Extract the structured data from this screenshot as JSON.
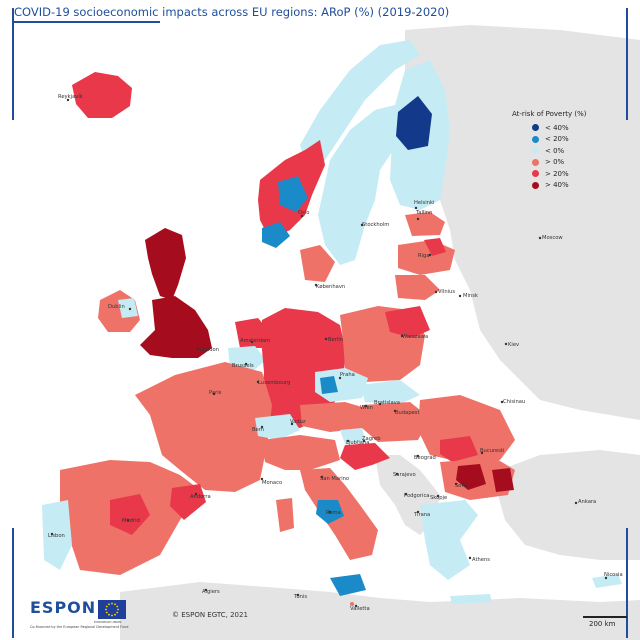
{
  "title": "COVID-19 socioeconomic impacts across EU regions: ARoP (%) (2019-2020)",
  "legend": {
    "title": "At-risk of Poverty (%)",
    "items": [
      {
        "label": "< 40%",
        "color": "#12398a"
      },
      {
        "label": "< 20%",
        "color": "#1b8ac8"
      },
      {
        "label": "< 0%",
        "color": "#c5ebf4"
      },
      {
        "label": "> 0%",
        "color": "#ee7268"
      },
      {
        "label": "> 20%",
        "color": "#e8384a"
      },
      {
        "label": "> 40%",
        "color": "#a50d1e"
      }
    ]
  },
  "colors": {
    "sea": "#ffffff",
    "non_eu_land": "#e4e4e4",
    "frame": "#1f4e9b"
  },
  "cities": {
    "reykjavik": "Reykjavík",
    "oslo": "Oslo",
    "stockholm": "Stockholm",
    "helsinki": "Helsinki",
    "tallinn": "Tallinn",
    "riga": "Riga",
    "moscow": "Moscow",
    "vilnius": "Vilnius",
    "minsk": "Minsk",
    "kobenhavn": "København",
    "dublin": "Dublin",
    "london": "London",
    "amsterdam": "Amsterdam",
    "berlin": "Berlin",
    "warszawa": "Warszawa",
    "kiev": "Kiev",
    "brussels": "Brussels",
    "luxembourg": "Luxembourg",
    "praha": "Praha",
    "paris": "Paris",
    "wien": "Wien",
    "bratislava": "Bratislava",
    "budapest": "Budapest",
    "chisinau": "Chisinau",
    "vaduz": "Vaduz",
    "bern": "Bern",
    "ljubljana": "Ljubljana",
    "zagreb": "Zagreb",
    "bucuresti": "Bucuresti",
    "beograd": "Beograd",
    "monaco": "Monaco",
    "san_marino": "San Marino",
    "sarajevo": "Sarajevo",
    "sofia": "Sofia",
    "podgorica": "Podgorica",
    "andorra": "Andorra",
    "skopje": "Skopje",
    "madrid": "Madrid",
    "roma": "Roma",
    "tirana": "Tirana",
    "ankara": "Ankara",
    "lisbon": "Lisbon",
    "athens": "Athens",
    "algiers": "Algiers",
    "tunis": "Tunis",
    "valletta": "Valletta",
    "nicosia": "Nicosia"
  },
  "footer": {
    "copyright": "© ESPON EGTC, 2021",
    "logo": "ESPON",
    "cofinanced": "Co-financed by the European Regional Development Fund",
    "eu_flag_label": "EUROPEAN UNION",
    "scale": "200 km"
  }
}
